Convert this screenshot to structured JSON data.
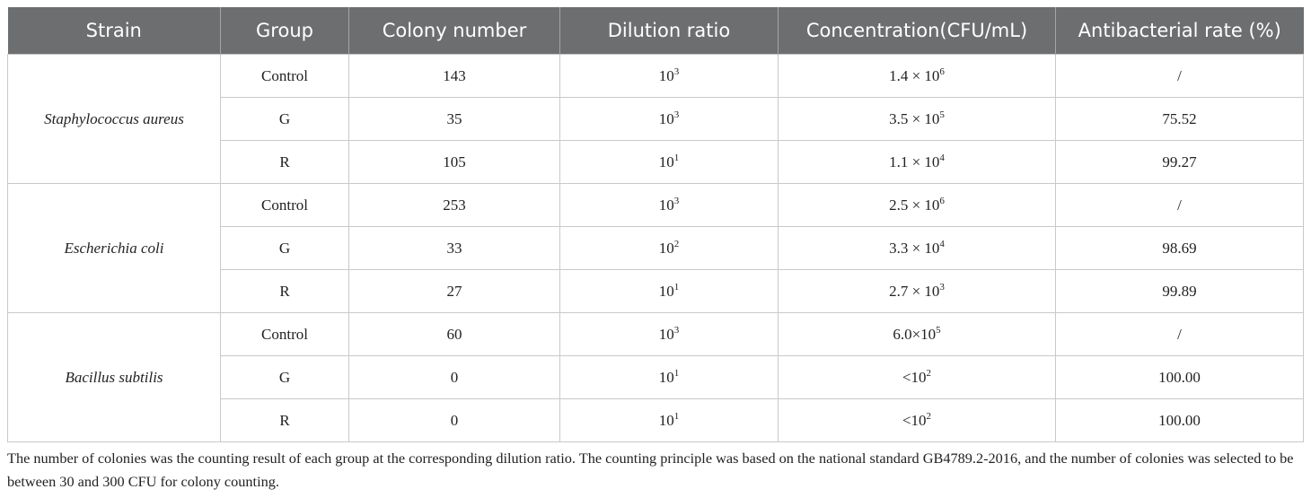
{
  "table": {
    "headers": [
      "Strain",
      "Group",
      "Colony number",
      "Dilution ratio",
      "Concentration(CFU/mL)",
      "Antibacterial rate (%)"
    ],
    "blocks": [
      {
        "strain": "Staphylococcus aureus",
        "rows": [
          {
            "group": "Control",
            "colony": "143",
            "dilution": {
              "base": "10",
              "sup": "3"
            },
            "concentration": {
              "base": "1.4 × 10",
              "sup": "6"
            },
            "rate": "/"
          },
          {
            "group": "G",
            "colony": "35",
            "dilution": {
              "base": "10",
              "sup": "3"
            },
            "concentration": {
              "base": "3.5 × 10",
              "sup": "5"
            },
            "rate": "75.52"
          },
          {
            "group": "R",
            "colony": "105",
            "dilution": {
              "base": "10",
              "sup": "1"
            },
            "concentration": {
              "base": "1.1 × 10",
              "sup": "4"
            },
            "rate": "99.27"
          }
        ]
      },
      {
        "strain": "Escherichia coli",
        "rows": [
          {
            "group": "Control",
            "colony": "253",
            "dilution": {
              "base": "10",
              "sup": "3"
            },
            "concentration": {
              "base": "2.5 × 10",
              "sup": "6"
            },
            "rate": "/"
          },
          {
            "group": "G",
            "colony": "33",
            "dilution": {
              "base": "10",
              "sup": "2"
            },
            "concentration": {
              "base": "3.3 × 10",
              "sup": "4"
            },
            "rate": "98.69"
          },
          {
            "group": "R",
            "colony": "27",
            "dilution": {
              "base": "10",
              "sup": "1"
            },
            "concentration": {
              "base": "2.7 × 10",
              "sup": "3"
            },
            "rate": "99.89"
          }
        ]
      },
      {
        "strain": "Bacillus subtilis",
        "rows": [
          {
            "group": "Control",
            "colony": "60",
            "dilution": {
              "base": "10",
              "sup": "3"
            },
            "concentration": {
              "base": "6.0×10",
              "sup": "5"
            },
            "rate": "/"
          },
          {
            "group": "G",
            "colony": "0",
            "dilution": {
              "base": "10",
              "sup": "1"
            },
            "concentration": {
              "base": "<10",
              "sup": "2"
            },
            "rate": "100.00"
          },
          {
            "group": "R",
            "colony": "0",
            "dilution": {
              "base": "10",
              "sup": "1"
            },
            "concentration": {
              "base": "<10",
              "sup": "2"
            },
            "rate": "100.00"
          }
        ]
      }
    ]
  },
  "footnote": "The number of colonies was the counting result of each group at the corresponding dilution ratio. The counting principle was based on the national standard GB4789.2-2016, and the number of colonies was selected to be between 30 and 300 CFU for colony counting."
}
